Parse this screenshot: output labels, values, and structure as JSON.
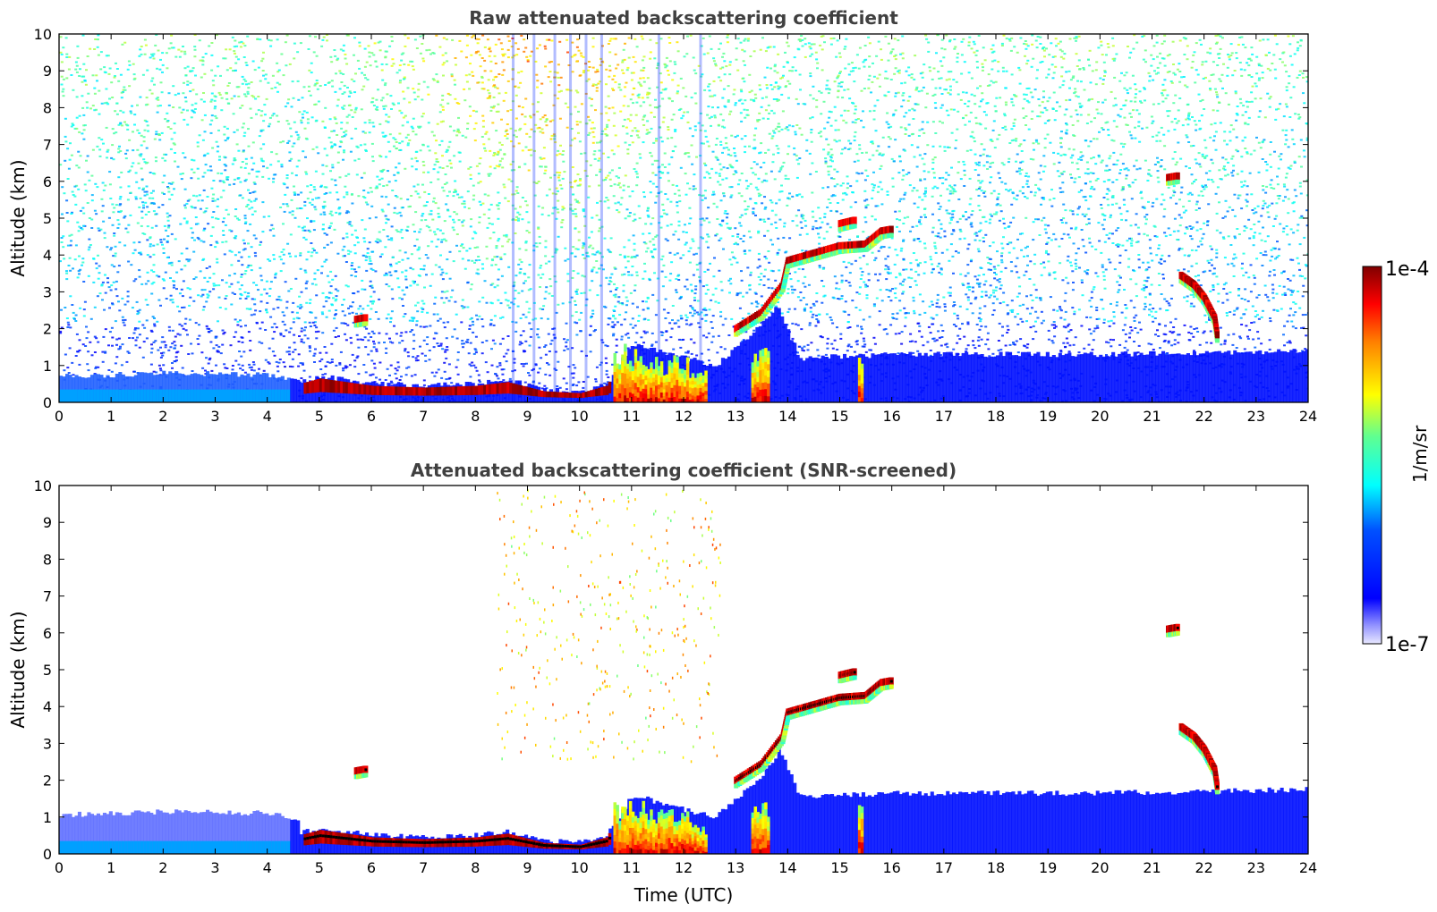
{
  "chart_data": [
    {
      "type": "heatmap",
      "title": "Raw attenuated backscattering coefficient",
      "xlabel": "",
      "ylabel": "Altitude (km)",
      "xlim": [
        0,
        24
      ],
      "ylim": [
        0,
        10
      ],
      "xticks": [
        "0",
        "1",
        "2",
        "3",
        "4",
        "5",
        "6",
        "7",
        "8",
        "9",
        "10",
        "11",
        "12",
        "13",
        "14",
        "15",
        "16",
        "17",
        "18",
        "19",
        "20",
        "21",
        "22",
        "23",
        "24"
      ],
      "yticks": [
        "0",
        "1",
        "2",
        "3",
        "4",
        "5",
        "6",
        "7",
        "8",
        "9",
        "10"
      ],
      "colormap": "jet",
      "noise": "high"
    },
    {
      "type": "heatmap",
      "title": "Attenuated backscattering coefficient (SNR-screened)",
      "xlabel": "Time (UTC)",
      "ylabel": "Altitude (km)",
      "xlim": [
        0,
        24
      ],
      "ylim": [
        0,
        10
      ],
      "xticks": [
        "0",
        "1",
        "2",
        "3",
        "4",
        "5",
        "6",
        "7",
        "8",
        "9",
        "10",
        "11",
        "12",
        "13",
        "14",
        "15",
        "16",
        "17",
        "18",
        "19",
        "20",
        "21",
        "22",
        "23",
        "24"
      ],
      "yticks": [
        "0",
        "1",
        "2",
        "3",
        "4",
        "5",
        "6",
        "7",
        "8",
        "9",
        "10"
      ],
      "colormap": "jet",
      "noise": "screened"
    }
  ],
  "colorbar": {
    "label": "1/m/sr",
    "max_label": "1e-4",
    "min_label": "1e-7",
    "scale": "log",
    "range": [
      1e-07,
      0.0001
    ]
  },
  "features": {
    "boundary_layer": [
      [
        0,
        0.7
      ],
      [
        2,
        0.8
      ],
      [
        4,
        0.75
      ],
      [
        4.6,
        0.55
      ],
      [
        5,
        0.7
      ],
      [
        6,
        0.5
      ],
      [
        7,
        0.45
      ],
      [
        8,
        0.5
      ],
      [
        8.6,
        0.6
      ],
      [
        9.3,
        0.35
      ],
      [
        10,
        0.3
      ],
      [
        10.5,
        0.5
      ],
      [
        11,
        1.6
      ],
      [
        12,
        1.2
      ],
      [
        12.6,
        1.0
      ],
      [
        13.3,
        1.9
      ],
      [
        13.8,
        2.6
      ],
      [
        14.2,
        1.2
      ],
      [
        16,
        1.3
      ],
      [
        20,
        1.3
      ],
      [
        24,
        1.4
      ]
    ],
    "cloud_layers": [
      {
        "points": [
          [
            13.0,
            2.0
          ],
          [
            13.5,
            2.45
          ],
          [
            13.9,
            3.2
          ],
          [
            14.0,
            3.85
          ],
          [
            14.5,
            4.05
          ],
          [
            15.0,
            4.25
          ],
          [
            15.5,
            4.3
          ],
          [
            15.8,
            4.65
          ],
          [
            16.0,
            4.7
          ]
        ]
      },
      {
        "points": [
          [
            15.0,
            4.85
          ],
          [
            15.3,
            4.95
          ]
        ]
      },
      {
        "points": [
          [
            21.55,
            3.45
          ],
          [
            21.8,
            3.2
          ],
          [
            22.0,
            2.85
          ],
          [
            22.2,
            2.3
          ],
          [
            22.25,
            1.8
          ]
        ]
      },
      {
        "points": [
          [
            5.7,
            2.25
          ],
          [
            5.9,
            2.3
          ]
        ]
      },
      {
        "points": [
          [
            21.3,
            6.1
          ],
          [
            21.5,
            6.15
          ]
        ]
      }
    ],
    "rain_columns": [
      {
        "x0": 10.65,
        "x1": 11.3,
        "top": 1.6
      },
      {
        "x0": 11.3,
        "x1": 12.1,
        "top": 1.3
      },
      {
        "x0": 12.1,
        "x1": 12.45,
        "top": 0.9
      },
      {
        "x0": 13.3,
        "x1": 13.65,
        "top": 1.5
      },
      {
        "x0": 15.35,
        "x1": 15.45,
        "top": 1.5
      }
    ],
    "noise_stripes_x": [
      10.1,
      10.4,
      9.5,
      9.1,
      8.7,
      9.8,
      11.5,
      12.3
    ]
  },
  "colors": {
    "colormap_stops": [
      "#00008f",
      "#0000ff",
      "#00ffff",
      "#ffff00",
      "#ff0000",
      "#800000"
    ],
    "clear_air": "#ffffff",
    "frame": "#000000"
  }
}
